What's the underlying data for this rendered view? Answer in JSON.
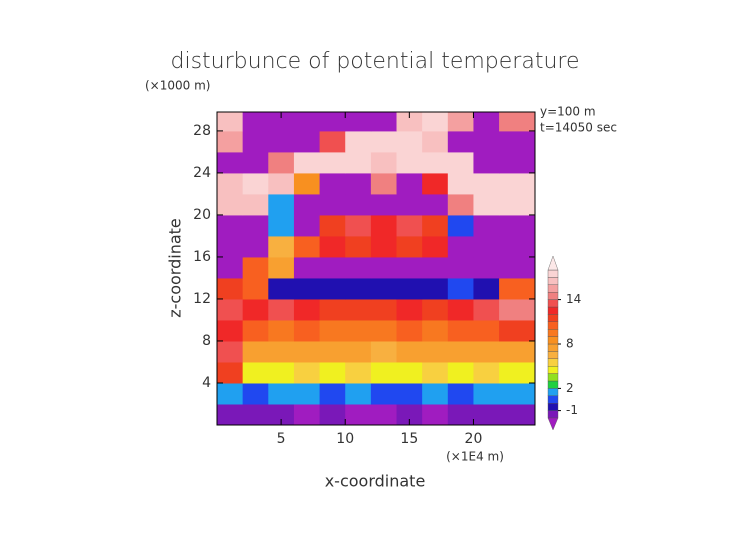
{
  "chart_data": {
    "type": "contour",
    "title": "disturbunce of potential temperature",
    "y_unit": "(×1000 m)",
    "x_unit": "(×1E4 m)",
    "annotations": [
      "y=100 m",
      "t=14050 sec"
    ],
    "xlabel": "x-coordinate",
    "ylabel": "z-coordinate",
    "xlim": [
      0,
      24.8
    ],
    "ylim": [
      0,
      29.8
    ],
    "xticks": [
      5,
      10,
      15,
      20
    ],
    "yticks": [
      4,
      8,
      12,
      16,
      20,
      24,
      28
    ],
    "x": [
      1,
      3,
      5,
      7,
      9,
      11,
      13,
      15,
      17,
      19,
      21,
      23
    ],
    "y": [
      1,
      3,
      5,
      7,
      9,
      11,
      13,
      15,
      17,
      19,
      21,
      23,
      25,
      27,
      29
    ],
    "z": [
      [
        -1.5,
        -1.5,
        -1.5,
        -2.5,
        -1.5,
        -2.5,
        -3,
        -1.5,
        -2.5,
        -1.5,
        -1.5,
        -1.5
      ],
      [
        1,
        0.5,
        1,
        1.5,
        0.5,
        1,
        0.5,
        0.5,
        1,
        0.5,
        1,
        1.5
      ],
      [
        11,
        4,
        4.5,
        5,
        4.5,
        5,
        4.5,
        4,
        5,
        4.5,
        5,
        4.5
      ],
      [
        13,
        7,
        7,
        7.5,
        7,
        7,
        6.5,
        7,
        7.5,
        7,
        7,
        7.5
      ],
      [
        12,
        10,
        9.5,
        10,
        9.5,
        9,
        9.5,
        10,
        9.5,
        10,
        10,
        11
      ],
      [
        13,
        12,
        13,
        12,
        11.5,
        11.5,
        11.5,
        12,
        11.5,
        12,
        13,
        14
      ],
      [
        11,
        10,
        -1,
        -1,
        -1,
        -0.5,
        -1,
        -1,
        -0.5,
        0,
        -1,
        10
      ],
      [
        -3,
        10,
        7,
        -3,
        -3,
        -3,
        -3,
        -3,
        -3,
        -3,
        -3,
        -3
      ],
      [
        -3,
        -3,
        6,
        10,
        12,
        11,
        12,
        11,
        12,
        -3,
        -3,
        -3
      ],
      [
        -3,
        -3,
        1,
        -3,
        11,
        13,
        12,
        13,
        11,
        0,
        -3,
        -3
      ],
      [
        16,
        16,
        1,
        -3,
        -3,
        -3,
        -3,
        -3,
        -3,
        14,
        17,
        17
      ],
      [
        16,
        17,
        16,
        8,
        -3,
        -3,
        14,
        -3,
        12,
        17,
        17,
        17
      ],
      [
        -3,
        -3,
        14,
        17,
        17,
        17,
        16,
        17,
        17,
        17,
        -3,
        -3
      ],
      [
        15,
        -3,
        -3,
        -3,
        13,
        17,
        17,
        17,
        16,
        -3,
        -3,
        -3
      ],
      [
        16,
        -3,
        -3,
        -3,
        -3,
        -3,
        -3,
        16,
        17,
        15,
        -3,
        14
      ]
    ],
    "levels": [
      -2,
      -1,
      0,
      1,
      2,
      3,
      4,
      5,
      6,
      7,
      8,
      9,
      10,
      11,
      12,
      13,
      14,
      15,
      16,
      17,
      18
    ],
    "colors": [
      "#a01cc0",
      "#7a18b8",
      "#2010b0",
      "#2048f0",
      "#20a0f0",
      "#20d040",
      "#90e020",
      "#f0f020",
      "#f8d040",
      "#f8b040",
      "#f8a030",
      "#f89020",
      "#f87820",
      "#f86020",
      "#f04020",
      "#f02828",
      "#f05050",
      "#f08080",
      "#f4a0a0",
      "#f8c0c0",
      "#fad4d4",
      "#fce8e8"
    ],
    "colorbar_ticks": [
      -1,
      2,
      8,
      14
    ]
  }
}
